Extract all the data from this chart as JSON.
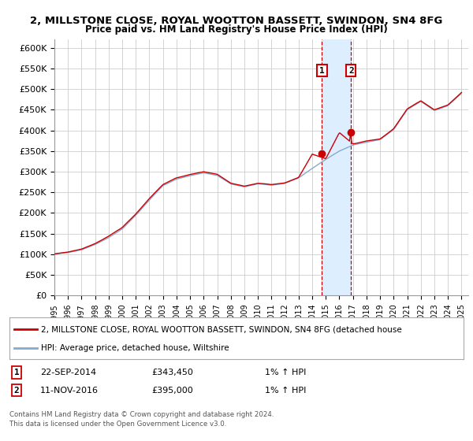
{
  "title": "2, MILLSTONE CLOSE, ROYAL WOOTTON BASSETT, SWINDON, SN4 8FG",
  "subtitle": "Price paid vs. HM Land Registry's House Price Index (HPI)",
  "ylim": [
    0,
    620000
  ],
  "yticks": [
    0,
    50000,
    100000,
    150000,
    200000,
    250000,
    300000,
    350000,
    400000,
    450000,
    500000,
    550000,
    600000
  ],
  "ytick_labels": [
    "£0",
    "£50K",
    "£100K",
    "£150K",
    "£200K",
    "£250K",
    "£300K",
    "£350K",
    "£400K",
    "£450K",
    "£500K",
    "£550K",
    "£600K"
  ],
  "xlim_start": 1995.0,
  "xlim_end": 2025.5,
  "sale1_year": 2014.72,
  "sale1_price": 343450,
  "sale2_year": 2016.86,
  "sale2_price": 395000,
  "sale1_label": "1",
  "sale2_label": "2",
  "sale1_date": "22-SEP-2014",
  "sale1_amount": "£343,450",
  "sale1_hpi": "1% ↑ HPI",
  "sale2_date": "11-NOV-2016",
  "sale2_amount": "£395,000",
  "sale2_hpi": "1% ↑ HPI",
  "red_line_color": "#cc0000",
  "blue_line_color": "#88aacc",
  "shade_color": "#ddeeff",
  "legend_line1": "2, MILLSTONE CLOSE, ROYAL WOOTTON BASSETT, SWINDON, SN4 8FG (detached house",
  "legend_line2": "HPI: Average price, detached house, Wiltshire",
  "footer1": "Contains HM Land Registry data © Crown copyright and database right 2024.",
  "footer2": "This data is licensed under the Open Government Licence v3.0.",
  "hpi_yearly": [
    100000,
    104000,
    111000,
    124000,
    141000,
    162000,
    195000,
    232000,
    267000,
    283000,
    291000,
    298000,
    292000,
    271000,
    264000,
    271000,
    268000,
    272000,
    285000,
    308000,
    330000,
    350000,
    365000,
    372000,
    378000,
    402000,
    450000,
    470000,
    448000,
    460000,
    490000
  ],
  "price_yearly": [
    100500,
    105000,
    112000,
    125500,
    143000,
    164000,
    197000,
    235000,
    269000,
    285000,
    293000,
    300000,
    294000,
    273000,
    266000,
    273000,
    270000,
    274000,
    287000,
    343450,
    332000,
    395000,
    368000,
    375000,
    380000,
    405000,
    453000,
    473000,
    451000,
    463000,
    493000
  ]
}
